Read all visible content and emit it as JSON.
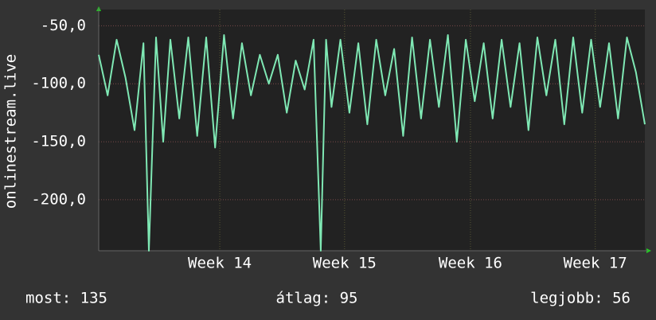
{
  "chart_data": {
    "type": "line",
    "y_label": "onlinestream.live",
    "x": [
      0,
      0.5,
      1,
      1.5,
      2,
      2.5,
      2.8,
      3.2,
      3.6,
      4,
      4.5,
      5,
      5.5,
      6,
      6.5,
      7,
      7.5,
      8,
      8.5,
      9,
      9.5,
      10,
      10.5,
      11,
      11.5,
      12,
      12.4,
      12.7,
      13,
      13.5,
      14,
      14.5,
      15,
      15.5,
      16,
      16.5,
      17,
      17.5,
      18,
      18.5,
      19,
      19.5,
      20,
      20.5,
      21,
      21.5,
      22,
      22.5,
      23,
      23.5,
      24,
      24.5,
      25,
      25.5,
      26,
      26.5,
      27,
      27.5,
      28,
      28.5,
      29,
      29.5,
      30,
      30.5
    ],
    "values": [
      -75,
      -110,
      -62,
      -95,
      -140,
      -65,
      -244,
      -60,
      -150,
      -62,
      -130,
      -60,
      -145,
      -60,
      -155,
      -58,
      -130,
      -65,
      -110,
      -75,
      -100,
      -75,
      -125,
      -80,
      -105,
      -62,
      -244,
      -62,
      -120,
      -62,
      -125,
      -65,
      -135,
      -62,
      -110,
      -70,
      -145,
      -60,
      -130,
      -62,
      -120,
      -58,
      -150,
      -62,
      -115,
      -65,
      -130,
      -62,
      -120,
      -65,
      -140,
      -60,
      -110,
      -62,
      -135,
      -60,
      -125,
      -62,
      -120,
      -65,
      -130,
      -60,
      -90,
      -135
    ],
    "color": "#7fe8b4",
    "xlim": [
      0,
      30.5
    ],
    "xticks": [
      {
        "value": 6.76,
        "label": "Week 14"
      },
      {
        "value": 13.73,
        "label": "Week 15"
      },
      {
        "value": 20.76,
        "label": "Week 16"
      },
      {
        "value": 27.73,
        "label": "Week 17"
      }
    ],
    "ylim": [
      -244,
      -36
    ],
    "yticks": [
      {
        "value": -50,
        "label": "-50,0"
      },
      {
        "value": -100,
        "label": "-100,0"
      },
      {
        "value": -150,
        "label": "-150,0"
      },
      {
        "value": -200,
        "label": "-200,0"
      }
    ],
    "grid": true,
    "footer": [
      "most: 135",
      "átlag: 95",
      "legjobb: 56"
    ]
  }
}
